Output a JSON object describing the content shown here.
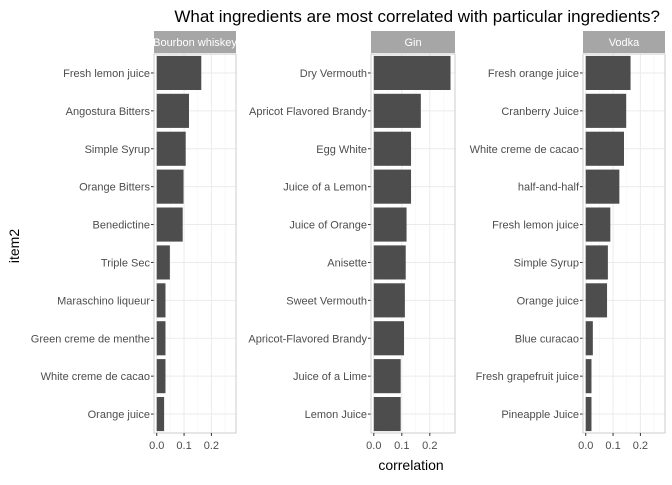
{
  "chart_data": {
    "type": "bar",
    "orientation": "horizontal",
    "title": "What ingredients are most correlated with particular ingredients?",
    "xlabel": "correlation",
    "ylabel": "item2",
    "xlim": [
      -0.01,
      0.29
    ],
    "x_ticks": [
      0.0,
      0.1,
      0.2
    ],
    "x_tick_labels": [
      "0.0",
      "0.1",
      "0.2"
    ],
    "grid": true,
    "bar_color": "#4d4d4d",
    "strip_color": "#a6a6a6",
    "panel_border_color": "#cccccc",
    "panels": [
      {
        "name": "Bourbon whiskey",
        "categories": [
          "Fresh lemon juice",
          "Angostura Bitters",
          "Simple Syrup",
          "Orange Bitters",
          "Benedictine",
          "Triple Sec",
          "Maraschino liqueur",
          "Green creme de menthe",
          "White creme de cacao",
          "Orange juice"
        ],
        "values": [
          0.163,
          0.118,
          0.106,
          0.098,
          0.095,
          0.048,
          0.032,
          0.032,
          0.032,
          0.027
        ]
      },
      {
        "name": "Gin",
        "categories": [
          "Dry Vermouth",
          "Apricot Flavored Brandy",
          "Egg White",
          "Juice of a Lemon",
          "Juice of Orange",
          "Anisette",
          "Sweet Vermouth",
          "Apricot-Flavored Brandy",
          "Juice of a Lime",
          "Lemon Juice"
        ],
        "values": [
          0.274,
          0.168,
          0.133,
          0.133,
          0.117,
          0.114,
          0.111,
          0.108,
          0.096,
          0.096
        ]
      },
      {
        "name": "Vodka",
        "categories": [
          "Fresh orange juice",
          "Cranberry Juice",
          "White creme de cacao",
          "half-and-half",
          "Fresh lemon juice",
          "Simple Syrup",
          "Orange juice",
          "Blue curacao",
          "Fresh grapefruit juice",
          "Pineapple Juice"
        ],
        "values": [
          0.164,
          0.148,
          0.14,
          0.123,
          0.09,
          0.081,
          0.078,
          0.026,
          0.021,
          0.021
        ]
      }
    ]
  }
}
